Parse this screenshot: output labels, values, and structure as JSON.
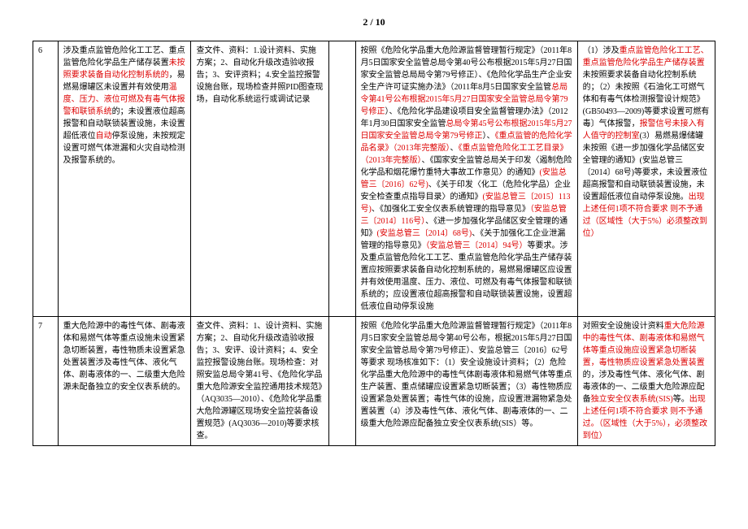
{
  "pageNumber": "2 / 10",
  "rows": [
    {
      "num": "6",
      "a": [
        {
          "t": "涉及重点监管危险化工工艺、重点监管危险化学品生产储存装置",
          "c": ""
        },
        {
          "t": "未按照要求装备自动化控制系统的",
          "c": "red"
        },
        {
          "t": "，易燃易爆罐区未设置并有效使用",
          "c": ""
        },
        {
          "t": "温度、压力、液位可燃及有毒气体报警和联锁系统",
          "c": "red"
        },
        {
          "t": "的；未设置液位超高报警和自动联锁装置设施，未设置超低液位",
          "c": ""
        },
        {
          "t": "自动",
          "c": "red"
        },
        {
          "t": "停泵设施，未按规定设置可燃气体泄漏和火灾自动检测及报警系统的。",
          "c": ""
        }
      ],
      "b": [
        {
          "t": "查文件、资料：1.设计资料、实施方案；2、自动化升级改造验收报告；3、安评资料；4.安全监控报警设施台账，现场检查并照PID图查现场，自动化系统运行或调试记录",
          "c": ""
        }
      ],
      "c": "",
      "d": [
        {
          "t": "按照《危险化学品重大危险源监督管理暂行规定》（2011年8月5日国家安全监管总局令第40号公布根据2015年5月27日国家安全监管总局局令第79号修正）、《危险化学品生产企业安全生产许可证实施办法》（2011年8月5日国家安全监管",
          "c": ""
        },
        {
          "t": "总局令第41号公布根据2015年5月27日国家安全监管总局令第79号修正",
          "c": "red"
        },
        {
          "t": "）、《危险化学品建设项目安全监督管理办法》（2012年1月30日国家安全监管",
          "c": ""
        },
        {
          "t": "总局令第45号公布根据2015年5月27日国家安全监管总局令第79号修正",
          "c": "red"
        },
        {
          "t": "）、",
          "c": ""
        },
        {
          "t": "《重点监管的危险化学品名录》（2013年完整版）",
          "c": "red"
        },
        {
          "t": "、",
          "c": ""
        },
        {
          "t": "《重点监管危险化工工艺目录》（2013年完整版）",
          "c": "red"
        },
        {
          "t": "、《国家安全监管总局关于印发〈遏制危险化学品和烟花爆竹重特大事故工作意见〉的通知》",
          "c": ""
        },
        {
          "t": "(安监总管三〔2016〕62号)",
          "c": "red"
        },
        {
          "t": "、《关于印发〈化工（危险化学品）企业安全检查重点指导目录〉的通知》",
          "c": ""
        },
        {
          "t": "(安监总管三〔2015〕113号)",
          "c": "red"
        },
        {
          "t": "、《加强化工安全仪表系统管理的指导意见》",
          "c": ""
        },
        {
          "t": "（安监总管三〔2014〕116号）",
          "c": "red"
        },
        {
          "t": "、《进一步加强化学品储区安全管理的通知》",
          "c": ""
        },
        {
          "t": "(安监总管三〔2014〕68号)",
          "c": "red"
        },
        {
          "t": "、《关于加强化工企业泄漏管理的指导意见》",
          "c": ""
        },
        {
          "t": "（安监总管三〔2014〕94号）",
          "c": "red"
        },
        {
          "t": "等要求。涉及重点监管危险化工工艺、重点监管危险化学品生产储存装置应按照要求装备自动化控制系统的，易燃易爆罐区应设置并有效使用温度、压力、液位、可燃及有毒气体报警和联锁系统的；应设置液位超高报警和自动联锁装置设施，设置超低液位自动停泵设施",
          "c": ""
        }
      ],
      "e": [
        {
          "t": "（1）涉及",
          "c": ""
        },
        {
          "t": "重点监管危险化工工艺、重点监管危险化学品生产储存装置",
          "c": "red"
        },
        {
          "t": "未按照要求装备自动化控制系统的；",
          "c": ""
        },
        {
          "t": "（2）未按照《石油化工可燃气体和有毒气体检测报警设计规范》(GB50493—2009)等要求设置可燃有毒〕气体报警，",
          "c": ""
        },
        {
          "t": "报警信号未接入有人值守的控制室",
          "c": "red"
        },
        {
          "t": "(3）易燃易爆储罐未按照《进一步加强化学品储区安全管理的通知》(安监总管三〔2014〕68号)等要求，未设置液位超高报警和自动联锁装置设施，未设置超低液位自动停泵设施。",
          "c": ""
        },
        {
          "t": "出现上述任何1项不符合要求 则不予通过（区域性（大于5%）必须整改到位）",
          "c": "red"
        }
      ]
    },
    {
      "num": "7",
      "a": [
        {
          "t": "重大危险源中的毒性气体、剧毒液体和易燃气体等重点设施未设置紧急切断装置，毒性物质未设置紧急处置装置涉及毒性气体、液化气体、剧毒液体的一、二级重大危险源未配备独立的安全仪表系统的。",
          "c": ""
        }
      ],
      "b": [
        {
          "t": "查文件、资料：1、设计资料、实施方案；2、自动化升级改造验收报告；3、安评、设计资料；4、安全监控报警设施台账。",
          "c": ""
        },
        {
          "t": "现场检查：",
          "c": ""
        },
        {
          "t": "对照安监总局令第41号、《危险化学品重大危险源安全监控通用技术规范》（AQ3035—2010）、《危险化学品重大危险源罐区现场安全监控装备设置规范》(AQ3036—2010)等要求核查。",
          "c": ""
        }
      ],
      "c": "",
      "d": [
        {
          "t": "按照《危险化学品重大危险源监督管理暂行规定》（2011年8月5日",
          "c": ""
        },
        {
          "t": "家安全监管总局令第40号公布，根据2015年5月27日国家安全监管总局令",
          "c": ""
        },
        {
          "t": "第79号修正）、安监总管三〔2016〕62号等要求 现场核准如下：",
          "c": ""
        },
        {
          "t": "（1）安全设施设计资料；",
          "c": ""
        },
        {
          "t": "（2）危险化学品重大危险源中的毒",
          "c": ""
        },
        {
          "t": "性气体剧毒液体和易燃气体等重点生产装置、重点储",
          "c": ""
        },
        {
          "t": "罐应设置紧急切断装置；",
          "c": ""
        },
        {
          "t": "（3）毒性物质应设置紧急处置装置；毒性气体的设施，应设置泄漏物紧",
          "c": ""
        },
        {
          "t": "急处置装置",
          "c": ""
        },
        {
          "t": "（4）涉及毒性气体、液化气体、剧毒液体的一、二级重大危险源应配备独立安全仪表系统(SIS）等。",
          "c": ""
        }
      ],
      "e": [
        {
          "t": "对照安全设施设计资料",
          "c": ""
        },
        {
          "t": "重大危险源中的毒性气体、剧毒液体和易燃气体等重点设施应设置紧急切断装置，毒性物质应设置紧急处置装置",
          "c": "red"
        },
        {
          "t": "的，涉及毒性气体、液化气体、剧毒液体的一、二级重大危险源应配备",
          "c": ""
        },
        {
          "t": "独立安全仪表系统(SIS)",
          "c": "red"
        },
        {
          "t": "等。",
          "c": ""
        },
        {
          "t": "出现上述任何1项不符合要求 则不予通过。（区域性（大于5%），必须整改到位）",
          "c": "red"
        }
      ]
    }
  ]
}
